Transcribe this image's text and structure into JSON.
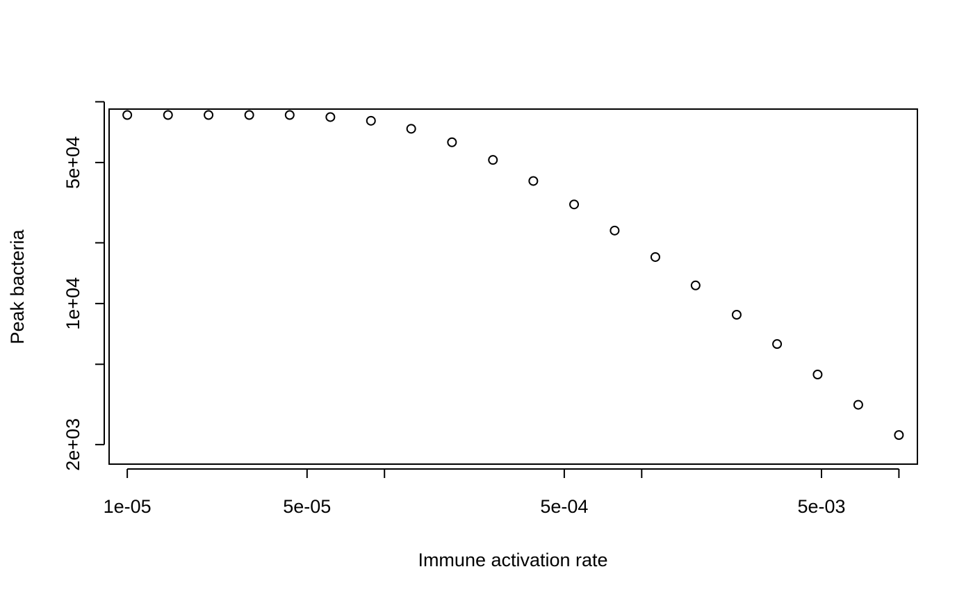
{
  "chart_data": {
    "type": "scatter",
    "title": "",
    "xlabel": "Immune activation rate",
    "ylabel": "Peak bacteria",
    "x_scale": "log",
    "y_scale": "log",
    "xlim": [
      8.5e-06,
      0.0118
    ],
    "ylim": [
      1600,
      92000
    ],
    "grid": false,
    "legend": "none",
    "x_ticks": [
      {
        "value": 1e-05,
        "label": "1e-05"
      },
      {
        "value": 5e-05,
        "label": "5e-05"
      },
      {
        "value": 0.0001,
        "label": ""
      },
      {
        "value": 0.0005,
        "label": "5e-04"
      },
      {
        "value": 0.001,
        "label": ""
      },
      {
        "value": 0.005,
        "label": "5e-03"
      },
      {
        "value": 0.01,
        "label": ""
      }
    ],
    "y_ticks": [
      {
        "value": 2000,
        "label": "2e+03"
      },
      {
        "value": 5000,
        "label": ""
      },
      {
        "value": 10000,
        "label": "1e+04"
      },
      {
        "value": 20000,
        "label": ""
      },
      {
        "value": 50000,
        "label": "5e+04"
      },
      {
        "value": 100000,
        "label": ""
      }
    ],
    "x": [
      1e-05,
      1.44e-05,
      2.07e-05,
      2.98e-05,
      4.28e-05,
      6.16e-05,
      8.86e-05,
      0.000127,
      0.000183,
      0.000264,
      0.000379,
      0.000546,
      0.000785,
      0.00113,
      0.00162,
      0.00234,
      0.00336,
      0.00483,
      0.00695,
      0.01
    ],
    "y": [
      86000,
      86000,
      86000,
      86000,
      86000,
      84000,
      80500,
      73500,
      63000,
      51500,
      40500,
      31000,
      23000,
      17000,
      12300,
      8800,
      6300,
      4450,
      3150,
      2230
    ]
  }
}
